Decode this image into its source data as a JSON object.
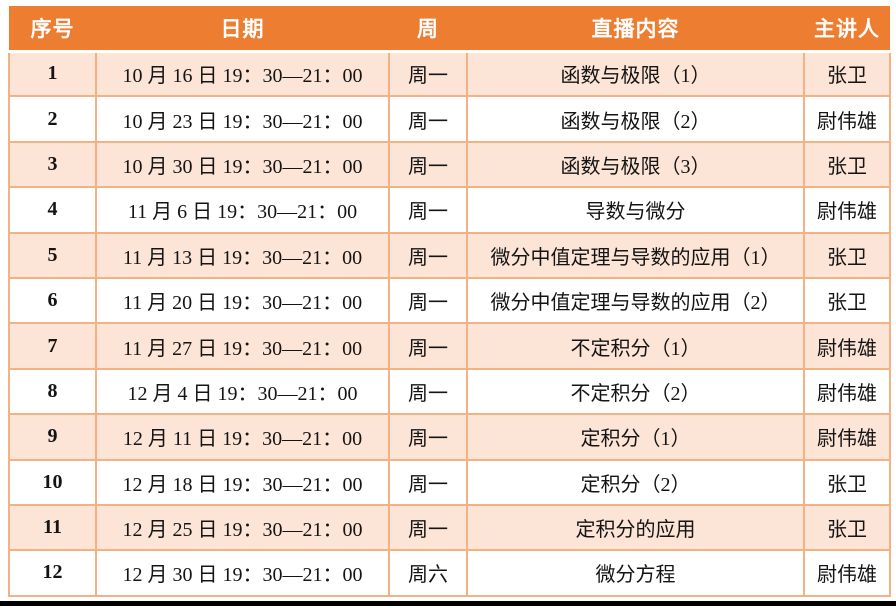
{
  "table": {
    "columns": [
      {
        "key": "index",
        "label": "序号"
      },
      {
        "key": "date",
        "label": "日期"
      },
      {
        "key": "week",
        "label": "周"
      },
      {
        "key": "content",
        "label": "直播内容"
      },
      {
        "key": "speaker",
        "label": "主讲人"
      }
    ],
    "rows": [
      {
        "index": "1",
        "date": "10 月 16 日 19：30—21：00",
        "week": "周一",
        "content": "函数与极限（1）",
        "speaker": "张卫"
      },
      {
        "index": "2",
        "date": "10 月 23 日 19：30—21：00",
        "week": "周一",
        "content": "函数与极限（2）",
        "speaker": "尉伟雄"
      },
      {
        "index": "3",
        "date": "10 月 30 日 19：30—21：00",
        "week": "周一",
        "content": "函数与极限（3）",
        "speaker": "张卫"
      },
      {
        "index": "4",
        "date": "11 月 6 日 19：30—21：00",
        "week": "周一",
        "content": "导数与微分",
        "speaker": "尉伟雄"
      },
      {
        "index": "5",
        "date": "11 月 13 日 19：30—21：00",
        "week": "周一",
        "content": "微分中值定理与导数的应用（1）",
        "speaker": "张卫"
      },
      {
        "index": "6",
        "date": "11 月 20 日 19：30—21：00",
        "week": "周一",
        "content": "微分中值定理与导数的应用（2）",
        "speaker": "张卫"
      },
      {
        "index": "7",
        "date": "11 月 27 日 19：30—21：00",
        "week": "周一",
        "content": "不定积分（1）",
        "speaker": "尉伟雄"
      },
      {
        "index": "8",
        "date": "12 月 4 日 19：30—21：00",
        "week": "周一",
        "content": "不定积分（2）",
        "speaker": "尉伟雄"
      },
      {
        "index": "9",
        "date": "12 月 11 日 19：30—21：00",
        "week": "周一",
        "content": "定积分（1）",
        "speaker": "尉伟雄"
      },
      {
        "index": "10",
        "date": "12 月 18 日 19：30—21：00",
        "week": "周一",
        "content": "定积分（2）",
        "speaker": "张卫"
      },
      {
        "index": "11",
        "date": "12 月 25 日 19：30—21：00",
        "week": "周一",
        "content": "定积分的应用",
        "speaker": "张卫"
      },
      {
        "index": "12",
        "date": "12 月 30 日 19：30—21：00",
        "week": "周六",
        "content": "微分方程",
        "speaker": "尉伟雄"
      }
    ]
  },
  "colors": {
    "header_bg": "#ED7D31",
    "header_text": "#FFFFFF",
    "row_alt_bg": "#FCE4D6",
    "row_bg": "#FFFFFF",
    "cell_border": "#F4B183",
    "body_text": "#141414",
    "bottom_bar": "#000000"
  }
}
